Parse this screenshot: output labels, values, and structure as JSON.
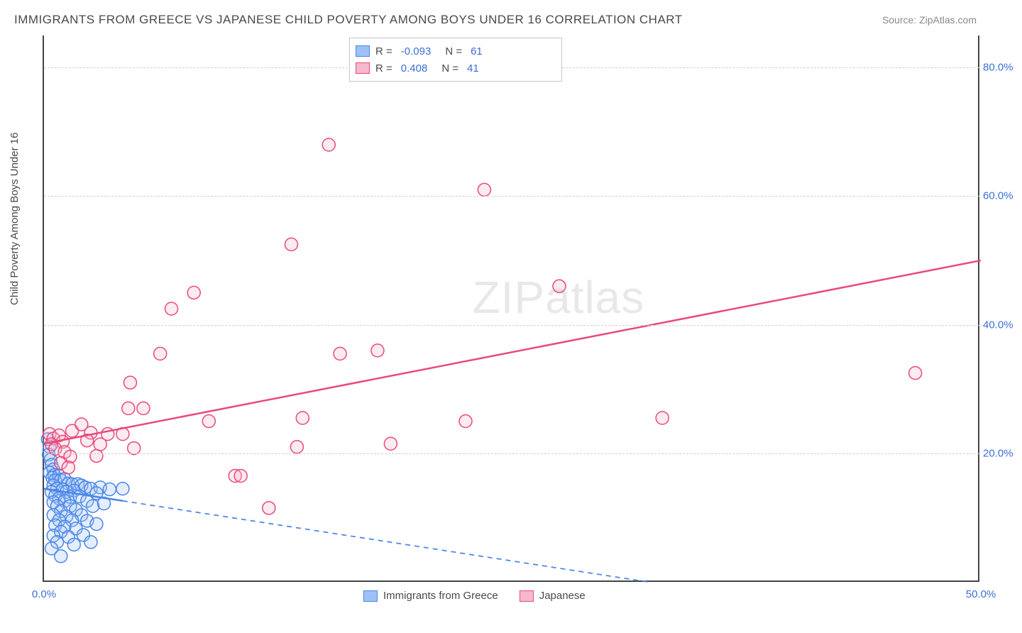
{
  "title": "IMMIGRANTS FROM GREECE VS JAPANESE CHILD POVERTY AMONG BOYS UNDER 16 CORRELATION CHART",
  "source_label": "Source:",
  "source_value": "ZipAtlas.com",
  "ylabel": "Child Poverty Among Boys Under 16",
  "watermark": "ZIPatlas",
  "chart": {
    "type": "scatter",
    "xlim": [
      0,
      50
    ],
    "ylim": [
      0,
      85
    ],
    "xticks": [
      {
        "v": 0,
        "label": "0.0%"
      },
      {
        "v": 50,
        "label": "50.0%"
      }
    ],
    "yticks": [
      {
        "v": 20,
        "label": "20.0%"
      },
      {
        "v": 40,
        "label": "40.0%"
      },
      {
        "v": 60,
        "label": "60.0%"
      },
      {
        "v": 80,
        "label": "80.0%"
      }
    ],
    "grid_color": "#d0d0d0",
    "background_color": "#ffffff",
    "axis_color": "#444444",
    "text_color": "#4a4a4a",
    "tick_label_color": "#3b6fd6",
    "marker_radius": 9,
    "marker_stroke_width": 1.5,
    "marker_fill_opacity": 0.28,
    "regression_line_width": 2.5,
    "regression_dash": "7,6",
    "series": [
      {
        "name": "Immigrants from Greece",
        "color": "#4a86e8",
        "fill": "#9ec1f5",
        "R": -0.093,
        "N": 61,
        "regression": {
          "x0": 0,
          "y0": 14.5,
          "x1": 50,
          "y1": -8.0,
          "solid_until_x": 4.2
        },
        "points": [
          {
            "x": 0.2,
            "y": 22.2
          },
          {
            "x": 0.3,
            "y": 21.0
          },
          {
            "x": 0.25,
            "y": 19.8
          },
          {
            "x": 0.35,
            "y": 19.0
          },
          {
            "x": 0.4,
            "y": 18.2
          },
          {
            "x": 0.5,
            "y": 17.5
          },
          {
            "x": 0.3,
            "y": 17.0
          },
          {
            "x": 0.55,
            "y": 16.6
          },
          {
            "x": 0.45,
            "y": 16.2
          },
          {
            "x": 0.8,
            "y": 16.5
          },
          {
            "x": 0.6,
            "y": 15.8
          },
          {
            "x": 0.9,
            "y": 15.8
          },
          {
            "x": 1.1,
            "y": 16.0
          },
          {
            "x": 0.5,
            "y": 15.0
          },
          {
            "x": 1.3,
            "y": 15.3
          },
          {
            "x": 0.7,
            "y": 14.5
          },
          {
            "x": 1.5,
            "y": 15.2
          },
          {
            "x": 1.8,
            "y": 15.2
          },
          {
            "x": 0.4,
            "y": 14.0
          },
          {
            "x": 1.0,
            "y": 14.4
          },
          {
            "x": 2.0,
            "y": 15.0
          },
          {
            "x": 1.2,
            "y": 14.0
          },
          {
            "x": 2.2,
            "y": 14.7
          },
          {
            "x": 0.6,
            "y": 13.4
          },
          {
            "x": 1.6,
            "y": 14.2
          },
          {
            "x": 0.8,
            "y": 13.0
          },
          {
            "x": 2.5,
            "y": 14.5
          },
          {
            "x": 1.4,
            "y": 13.2
          },
          {
            "x": 0.5,
            "y": 12.4
          },
          {
            "x": 1.1,
            "y": 12.6
          },
          {
            "x": 3.0,
            "y": 14.7
          },
          {
            "x": 1.9,
            "y": 13.3
          },
          {
            "x": 0.7,
            "y": 11.8
          },
          {
            "x": 2.8,
            "y": 13.8
          },
          {
            "x": 1.4,
            "y": 11.8
          },
          {
            "x": 0.9,
            "y": 11.0
          },
          {
            "x": 2.3,
            "y": 12.6
          },
          {
            "x": 3.5,
            "y": 14.4
          },
          {
            "x": 1.7,
            "y": 11.2
          },
          {
            "x": 0.5,
            "y": 10.4
          },
          {
            "x": 1.2,
            "y": 10.2
          },
          {
            "x": 2.6,
            "y": 11.8
          },
          {
            "x": 4.2,
            "y": 14.5
          },
          {
            "x": 0.8,
            "y": 9.6
          },
          {
            "x": 2.0,
            "y": 10.4
          },
          {
            "x": 1.5,
            "y": 9.6
          },
          {
            "x": 0.6,
            "y": 8.8
          },
          {
            "x": 3.2,
            "y": 12.2
          },
          {
            "x": 1.1,
            "y": 8.6
          },
          {
            "x": 2.3,
            "y": 9.5
          },
          {
            "x": 0.9,
            "y": 7.8
          },
          {
            "x": 1.7,
            "y": 8.3
          },
          {
            "x": 0.5,
            "y": 7.2
          },
          {
            "x": 2.8,
            "y": 9.0
          },
          {
            "x": 1.3,
            "y": 7.0
          },
          {
            "x": 2.1,
            "y": 7.3
          },
          {
            "x": 0.7,
            "y": 6.2
          },
          {
            "x": 1.6,
            "y": 5.8
          },
          {
            "x": 2.5,
            "y": 6.2
          },
          {
            "x": 0.4,
            "y": 5.2
          },
          {
            "x": 0.9,
            "y": 4.0
          }
        ]
      },
      {
        "name": "Japanese",
        "color": "#e84a7a",
        "fill": "#f5b8cc",
        "R": 0.408,
        "N": 41,
        "regression": {
          "x0": 0,
          "y0": 21.5,
          "x1": 50,
          "y1": 50.0,
          "solid_until_x": 50
        },
        "points": [
          {
            "x": 0.3,
            "y": 23.0
          },
          {
            "x": 0.5,
            "y": 22.3
          },
          {
            "x": 0.8,
            "y": 22.8
          },
          {
            "x": 0.4,
            "y": 21.4
          },
          {
            "x": 1.0,
            "y": 21.8
          },
          {
            "x": 0.6,
            "y": 20.7
          },
          {
            "x": 1.5,
            "y": 23.5
          },
          {
            "x": 1.1,
            "y": 20.2
          },
          {
            "x": 2.0,
            "y": 24.5
          },
          {
            "x": 1.4,
            "y": 19.5
          },
          {
            "x": 2.5,
            "y": 23.2
          },
          {
            "x": 2.3,
            "y": 22.0
          },
          {
            "x": 3.4,
            "y": 23.0
          },
          {
            "x": 3.0,
            "y": 21.4
          },
          {
            "x": 4.2,
            "y": 23.0
          },
          {
            "x": 2.8,
            "y": 19.6
          },
          {
            "x": 0.9,
            "y": 18.5
          },
          {
            "x": 1.3,
            "y": 17.8
          },
          {
            "x": 4.8,
            "y": 20.8
          },
          {
            "x": 4.5,
            "y": 27.0
          },
          {
            "x": 5.3,
            "y": 27.0
          },
          {
            "x": 4.6,
            "y": 31.0
          },
          {
            "x": 6.2,
            "y": 35.5
          },
          {
            "x": 6.8,
            "y": 42.5
          },
          {
            "x": 8.0,
            "y": 45.0
          },
          {
            "x": 8.8,
            "y": 25.0
          },
          {
            "x": 10.2,
            "y": 16.5
          },
          {
            "x": 10.5,
            "y": 16.5
          },
          {
            "x": 12.0,
            "y": 11.5
          },
          {
            "x": 13.2,
            "y": 52.5
          },
          {
            "x": 13.8,
            "y": 25.5
          },
          {
            "x": 13.5,
            "y": 21.0
          },
          {
            "x": 15.2,
            "y": 68.0
          },
          {
            "x": 15.8,
            "y": 35.5
          },
          {
            "x": 17.8,
            "y": 36.0
          },
          {
            "x": 18.5,
            "y": 21.5
          },
          {
            "x": 22.5,
            "y": 25.0
          },
          {
            "x": 23.5,
            "y": 61.0
          },
          {
            "x": 27.5,
            "y": 46.0
          },
          {
            "x": 33.0,
            "y": 25.5
          },
          {
            "x": 46.5,
            "y": 32.5
          }
        ]
      }
    ]
  },
  "legend_top": {
    "r_label": "R =",
    "n_label": "N ="
  }
}
